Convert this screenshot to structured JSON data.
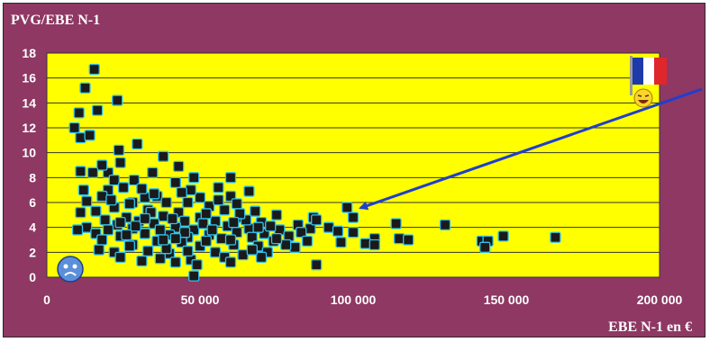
{
  "chart_data": {
    "type": "scatter",
    "title": "PVG/EBE N-1",
    "xlabel": "EBE N-1 en €",
    "ylabel": "",
    "xlim": [
      0,
      200000
    ],
    "ylim": [
      0,
      18
    ],
    "x_ticks": [
      0,
      50000,
      100000,
      150000,
      200000
    ],
    "x_tick_labels": [
      "0",
      "50 000",
      "100 000",
      "150 000",
      "200 000"
    ],
    "y_ticks": [
      0,
      2,
      4,
      6,
      8,
      10,
      12,
      14,
      16,
      18
    ],
    "y_tick_labels": [
      "0",
      "2",
      "4",
      "6",
      "8",
      "10",
      "12",
      "14",
      "16",
      "18"
    ],
    "grid": "horizontal",
    "plot_background": "#ffff00",
    "frame_background": "#8e3863",
    "marker_color": "#1a1a1a",
    "marker_edge_color": "#2ec3f0",
    "arrow_color": "#1f3fcf",
    "icons": [
      "sad-smiley-icon",
      "france-flag-icon",
      "laughing-smiley-icon"
    ],
    "annotation_arrow": {
      "points_to": [
        100000,
        5.7
      ]
    },
    "points": [
      [
        15500,
        16.7
      ],
      [
        12500,
        15.2
      ],
      [
        16500,
        13.4
      ],
      [
        23000,
        14.2
      ],
      [
        10500,
        13.2
      ],
      [
        9000,
        12.0
      ],
      [
        11000,
        11.2
      ],
      [
        14000,
        11.4
      ],
      [
        29500,
        10.7
      ],
      [
        23500,
        10.2
      ],
      [
        38000,
        9.7
      ],
      [
        24000,
        9.2
      ],
      [
        43000,
        8.9
      ],
      [
        11000,
        8.5
      ],
      [
        20000,
        8.4
      ],
      [
        34500,
        8.4
      ],
      [
        18000,
        9.0
      ],
      [
        15000,
        8.4
      ],
      [
        60000,
        8.0
      ],
      [
        48000,
        8.0
      ],
      [
        22000,
        7.8
      ],
      [
        28500,
        7.8
      ],
      [
        42000,
        7.6
      ],
      [
        66000,
        6.9
      ],
      [
        56000,
        7.2
      ],
      [
        12000,
        7.0
      ],
      [
        20000,
        7.0
      ],
      [
        25000,
        7.2
      ],
      [
        18000,
        6.5
      ],
      [
        32000,
        6.4
      ],
      [
        50000,
        6.4
      ],
      [
        36000,
        6.5
      ],
      [
        13000,
        6.1
      ],
      [
        60000,
        6.5
      ],
      [
        98000,
        5.6
      ],
      [
        28000,
        6.0
      ],
      [
        39000,
        6.0
      ],
      [
        46000,
        6.0
      ],
      [
        62000,
        5.9
      ],
      [
        22000,
        5.6
      ],
      [
        53000,
        5.7
      ],
      [
        33000,
        5.4
      ],
      [
        16000,
        5.3
      ],
      [
        11000,
        5.2
      ],
      [
        58000,
        5.4
      ],
      [
        68000,
        5.3
      ],
      [
        43000,
        5.2
      ],
      [
        75000,
        5.0
      ],
      [
        87000,
        4.8
      ],
      [
        100000,
        4.8
      ],
      [
        26000,
        4.8
      ],
      [
        38000,
        4.9
      ],
      [
        50000,
        4.8
      ],
      [
        63000,
        4.8
      ],
      [
        19000,
        4.6
      ],
      [
        30000,
        4.5
      ],
      [
        45000,
        4.5
      ],
      [
        55000,
        4.5
      ],
      [
        70000,
        4.4
      ],
      [
        82000,
        4.2
      ],
      [
        114000,
        4.3
      ],
      [
        130000,
        4.2
      ],
      [
        13000,
        4.0
      ],
      [
        23000,
        4.2
      ],
      [
        35000,
        4.3
      ],
      [
        42000,
        4.0
      ],
      [
        59000,
        4.1
      ],
      [
        66000,
        3.9
      ],
      [
        92000,
        4.0
      ],
      [
        10000,
        3.8
      ],
      [
        20000,
        3.8
      ],
      [
        28000,
        3.9
      ],
      [
        48000,
        3.8
      ],
      [
        76000,
        3.8
      ],
      [
        86000,
        3.9
      ],
      [
        95000,
        3.7
      ],
      [
        16000,
        3.5
      ],
      [
        32000,
        3.5
      ],
      [
        40000,
        3.4
      ],
      [
        53000,
        3.4
      ],
      [
        62000,
        3.6
      ],
      [
        71000,
        3.5
      ],
      [
        100000,
        3.6
      ],
      [
        24000,
        3.3
      ],
      [
        46000,
        3.2
      ],
      [
        57000,
        3.1
      ],
      [
        67000,
        3.2
      ],
      [
        79000,
        3.3
      ],
      [
        107000,
        3.1
      ],
      [
        115000,
        3.1
      ],
      [
        118000,
        3.0
      ],
      [
        149000,
        3.3
      ],
      [
        166000,
        3.2
      ],
      [
        142000,
        2.9
      ],
      [
        18000,
        3.0
      ],
      [
        36000,
        2.9
      ],
      [
        44000,
        2.8
      ],
      [
        74000,
        2.9
      ],
      [
        96000,
        2.8
      ],
      [
        104000,
        2.7
      ],
      [
        107000,
        2.6
      ],
      [
        144000,
        2.9
      ],
      [
        28000,
        2.6
      ],
      [
        50000,
        2.5
      ],
      [
        61000,
        2.6
      ],
      [
        69000,
        2.5
      ],
      [
        81000,
        2.4
      ],
      [
        143000,
        2.4
      ],
      [
        17000,
        2.2
      ],
      [
        22000,
        2.0
      ],
      [
        33000,
        2.1
      ],
      [
        40000,
        1.9
      ],
      [
        55000,
        2.0
      ],
      [
        64000,
        1.8
      ],
      [
        72000,
        2.0
      ],
      [
        24000,
        1.6
      ],
      [
        37000,
        1.5
      ],
      [
        47000,
        1.4
      ],
      [
        58000,
        1.6
      ],
      [
        70000,
        1.6
      ],
      [
        31000,
        1.3
      ],
      [
        42000,
        1.2
      ],
      [
        60000,
        1.2
      ],
      [
        88000,
        1.0
      ],
      [
        49000,
        1.0
      ],
      [
        48000,
        0.1
      ],
      [
        27000,
        5.9
      ],
      [
        34000,
        5.2
      ],
      [
        41000,
        4.7
      ],
      [
        51000,
        4.3
      ],
      [
        65000,
        4.6
      ],
      [
        29000,
        4.1
      ],
      [
        37000,
        3.8
      ],
      [
        45000,
        3.6
      ],
      [
        52000,
        2.9
      ],
      [
        26000,
        3.4
      ],
      [
        54000,
        3.8
      ],
      [
        73000,
        4.1
      ],
      [
        83000,
        3.6
      ],
      [
        88000,
        4.6
      ],
      [
        39000,
        2.3
      ],
      [
        46000,
        2.1
      ],
      [
        60000,
        3.0
      ],
      [
        67000,
        2.2
      ],
      [
        78000,
        2.6
      ],
      [
        85000,
        2.9
      ],
      [
        31000,
        7.1
      ],
      [
        47000,
        7.0
      ],
      [
        21000,
        6.2
      ],
      [
        44000,
        6.8
      ],
      [
        35000,
        6.7
      ],
      [
        52000,
        5.1
      ],
      [
        24000,
        4.4
      ],
      [
        56000,
        6.2
      ],
      [
        63000,
        5.1
      ],
      [
        69000,
        4.0
      ],
      [
        38000,
        3.0
      ],
      [
        32000,
        4.7
      ],
      [
        27000,
        2.5
      ],
      [
        42000,
        3.1
      ],
      [
        61000,
        4.4
      ],
      [
        75000,
        3.1
      ]
    ]
  }
}
